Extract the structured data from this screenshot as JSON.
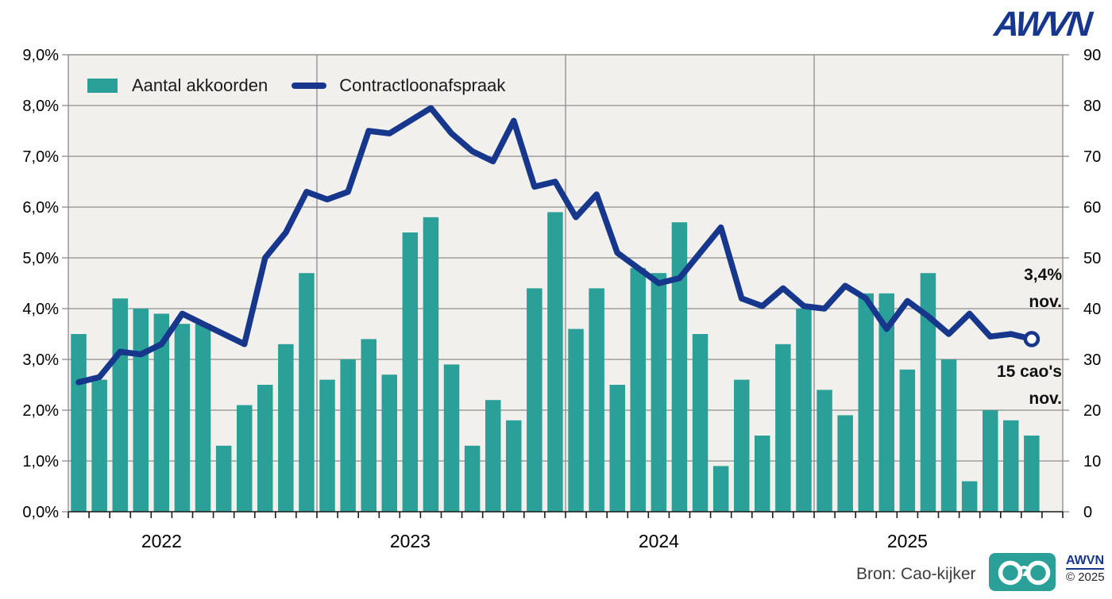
{
  "header": {
    "logo_text": "AWVN"
  },
  "legend": {
    "items": [
      {
        "id": "bars",
        "label": "Aantal akkoorden",
        "color": "#2aa098"
      },
      {
        "id": "line",
        "label": "Contractloonafspraak",
        "color": "#16378c"
      }
    ]
  },
  "annotations": {
    "line_end": {
      "line1": "3,4%",
      "line2": "nov."
    },
    "bar_end": {
      "line1": "15 cao's",
      "line2": "nov."
    }
  },
  "footer": {
    "source": "Bron: Cao-kijker",
    "logo_icon": "cao-kijker-glasses-icon",
    "brand": "AWVN",
    "copyright": "© 2025"
  },
  "colors": {
    "bar": "#2aa098",
    "line": "#16378c",
    "grid": "#8c8c8c",
    "axis": "#1a1a1a",
    "plot_bg": "#f2f0ed",
    "brand_blue": "#17368d"
  },
  "chart_data": {
    "type": "bar+line",
    "title": "",
    "x_months": [
      "2022-01",
      "2022-02",
      "2022-03",
      "2022-04",
      "2022-05",
      "2022-06",
      "2022-07",
      "2022-08",
      "2022-09",
      "2022-10",
      "2022-11",
      "2022-12",
      "2023-01",
      "2023-02",
      "2023-03",
      "2023-04",
      "2023-05",
      "2023-06",
      "2023-07",
      "2023-08",
      "2023-09",
      "2023-10",
      "2023-11",
      "2023-12",
      "2024-01",
      "2024-02",
      "2024-03",
      "2024-04",
      "2024-05",
      "2024-06",
      "2024-07",
      "2024-08",
      "2024-09",
      "2024-10",
      "2024-11",
      "2024-12",
      "2025-01",
      "2025-02",
      "2025-03",
      "2025-04",
      "2025-05",
      "2025-06",
      "2025-07",
      "2025-08",
      "2025-09",
      "2025-10",
      "2025-11"
    ],
    "x_axis": {
      "year_labels": [
        "2022",
        "2023",
        "2024",
        "2025"
      ],
      "slots": 48,
      "months_with_data": 47
    },
    "series": [
      {
        "name": "Aantal akkoorden",
        "type": "bar",
        "axis": "right",
        "values": [
          35,
          26,
          42,
          40,
          39,
          37,
          37,
          13,
          21,
          25,
          33,
          47,
          26,
          30,
          34,
          27,
          55,
          58,
          29,
          13,
          22,
          18,
          44,
          59,
          36,
          44,
          25,
          48,
          47,
          57,
          35,
          9,
          26,
          15,
          33,
          40,
          24,
          19,
          43,
          43,
          28,
          47,
          30,
          6,
          20,
          18,
          15
        ]
      },
      {
        "name": "Contractloonafspraak",
        "type": "line",
        "axis": "left",
        "unit": "%",
        "values": [
          2.55,
          2.65,
          3.15,
          3.1,
          3.3,
          3.9,
          3.7,
          3.5,
          3.3,
          5.0,
          5.5,
          6.3,
          6.15,
          6.3,
          7.5,
          7.45,
          7.7,
          7.95,
          7.45,
          7.1,
          6.9,
          7.7,
          6.4,
          6.5,
          5.8,
          6.25,
          5.1,
          4.8,
          4.5,
          4.6,
          5.1,
          5.6,
          4.2,
          4.05,
          4.4,
          4.05,
          4.0,
          4.45,
          4.2,
          3.6,
          4.15,
          3.85,
          3.5,
          3.9,
          3.45,
          3.5,
          3.4
        ]
      }
    ],
    "axes": {
      "left": {
        "ticks": [
          "0,0%",
          "1,0%",
          "2,0%",
          "3,0%",
          "4,0%",
          "5,0%",
          "6,0%",
          "7,0%",
          "8,0%",
          "9,0%"
        ],
        "min": 0,
        "max": 9
      },
      "right": {
        "ticks": [
          "0",
          "10",
          "20",
          "30",
          "40",
          "50",
          "60",
          "70",
          "80",
          "90"
        ],
        "min": 0,
        "max": 90
      }
    },
    "grid": true,
    "legend_position": "top-left-inside",
    "annotation_notes": [
      "3,4% nov. (line endpoint)",
      "15 cao's nov. (last bar)"
    ]
  }
}
